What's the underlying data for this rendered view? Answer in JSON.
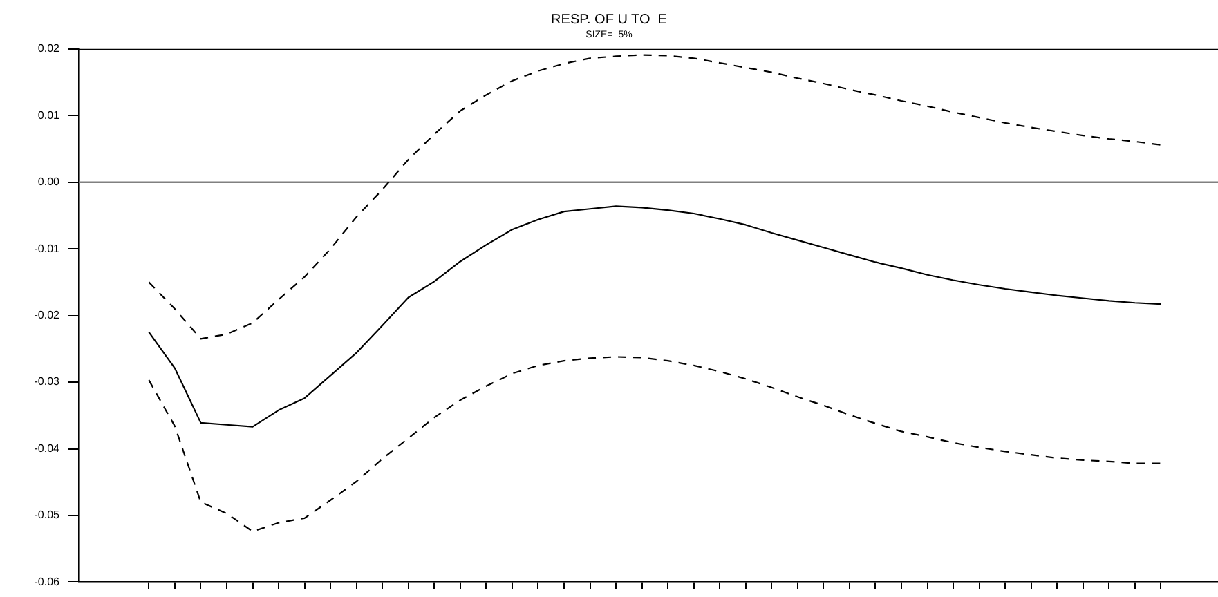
{
  "chart_data": {
    "type": "line",
    "title": "RESP. OF U TO  E",
    "subtitle": "SIZE=  5%",
    "categories": [
      null,
      null,
      null,
      null,
      null,
      null,
      null,
      null,
      null,
      null,
      null,
      null,
      null,
      null,
      null,
      null,
      null,
      null,
      null,
      null,
      null,
      null,
      null,
      null,
      null,
      null,
      null,
      null,
      null,
      null,
      null,
      null,
      null,
      null,
      null,
      null,
      null,
      null,
      null,
      null
    ],
    "series": [
      {
        "color": "#000000",
        "line_style": "solid",
        "values": [
          -0.0225,
          -0.0279,
          -0.0361,
          -0.0364,
          -0.0367,
          -0.0342,
          -0.0324,
          -0.029,
          -0.0256,
          -0.0215,
          -0.0173,
          -0.0149,
          -0.0119,
          -0.0094,
          -0.0071,
          -0.0056,
          -0.0044,
          -0.004,
          -0.0036,
          -0.0038,
          -0.0042,
          -0.0047,
          -0.0055,
          -0.0064,
          -0.0076,
          -0.0087,
          -0.0098,
          -0.0109,
          -0.012,
          -0.0129,
          -0.0139,
          -0.0147,
          -0.0154,
          -0.016,
          -0.0165,
          -0.017,
          -0.0174,
          -0.0178,
          -0.0181,
          -0.0183
        ]
      },
      {
        "color": "#000000",
        "line_style": "dashed",
        "values": [
          -0.015,
          -0.019,
          -0.0235,
          -0.0228,
          -0.0211,
          -0.0176,
          -0.0142,
          -0.01,
          -0.0052,
          -0.0011,
          0.0034,
          0.0072,
          0.0107,
          0.0131,
          0.0152,
          0.0167,
          0.0178,
          0.0186,
          0.0189,
          0.0191,
          0.019,
          0.0186,
          0.0179,
          0.0172,
          0.0165,
          0.0156,
          0.0148,
          0.0139,
          0.0131,
          0.0122,
          0.0114,
          0.0105,
          0.0097,
          0.0089,
          0.0082,
          0.0076,
          0.007,
          0.0065,
          0.0061,
          0.0056
        ]
      },
      {
        "color": "#000000",
        "line_style": "dashed",
        "values": [
          -0.0297,
          -0.0366,
          -0.048,
          -0.0497,
          -0.0524,
          -0.0511,
          -0.0504,
          -0.0477,
          -0.0449,
          -0.0415,
          -0.0384,
          -0.0353,
          -0.0327,
          -0.0306,
          -0.0287,
          -0.0275,
          -0.0268,
          -0.0264,
          -0.0262,
          -0.0263,
          -0.0268,
          -0.0275,
          -0.0284,
          -0.0295,
          -0.0308,
          -0.0322,
          -0.0335,
          -0.0349,
          -0.0362,
          -0.0374,
          -0.0382,
          -0.0391,
          -0.0398,
          -0.0404,
          -0.0409,
          -0.0414,
          -0.0417,
          -0.0419,
          -0.0422,
          -0.0422
        ]
      }
    ],
    "ylim": [
      -0.06,
      0.02
    ],
    "yticks": [
      -0.06,
      -0.05,
      -0.04,
      -0.03,
      -0.02,
      -0.01,
      {
        "value": 0,
        "label": "0.00"
      },
      0.01,
      0.02
    ],
    "ref_lines": [
      {
        "axis": "y",
        "value": 0,
        "color": "#808080"
      }
    ],
    "tick_labels": "y",
    "legend": false,
    "grid": false,
    "marker": "none"
  }
}
